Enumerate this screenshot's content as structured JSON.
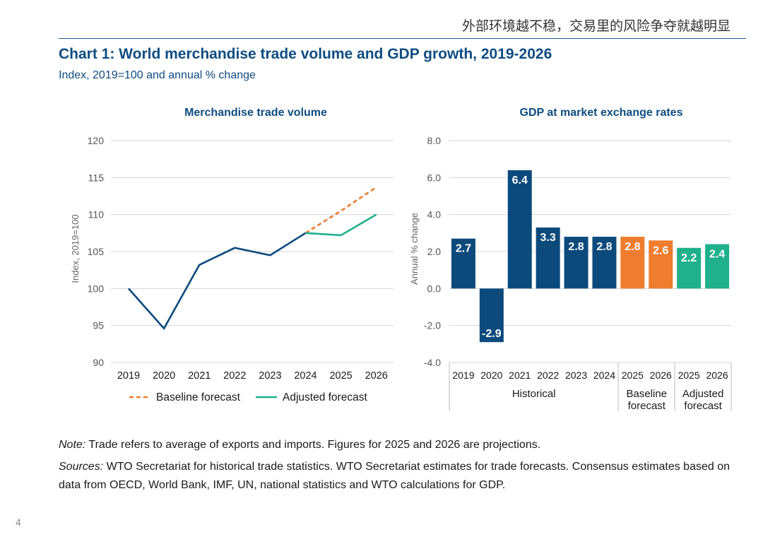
{
  "header": {
    "text": "外部环境越不稳，交易里的风险争夺就越明显"
  },
  "figure": {
    "title": "Chart 1: World merchandise trade volume and GDP growth, 2019-2026",
    "subtitle": "Index, 2019=100 and annual % change"
  },
  "colors": {
    "historical": "#0d4a7c",
    "baseline": "#ef7d2f",
    "adjusted": "#1fb08c",
    "title": "#0f4c81"
  },
  "chart_data": [
    {
      "type": "line",
      "title": "Merchandise trade volume",
      "xlabel": "",
      "ylabel": "Index, 2019=100",
      "ylim": [
        90,
        120
      ],
      "yticks": [
        90,
        95,
        100,
        105,
        110,
        115,
        120
      ],
      "x": [
        "2019",
        "2020",
        "2021",
        "2022",
        "2023",
        "2024",
        "2025",
        "2026"
      ],
      "series": [
        {
          "name": "Historical",
          "style": "solid",
          "x": [
            "2019",
            "2020",
            "2021",
            "2022",
            "2023",
            "2024"
          ],
          "values": [
            100.0,
            94.6,
            103.2,
            105.5,
            104.5,
            107.5
          ]
        },
        {
          "name": "Baseline forecast",
          "style": "dashed",
          "x": [
            "2024",
            "2025",
            "2026"
          ],
          "values": [
            107.5,
            110.5,
            113.7
          ]
        },
        {
          "name": "Adjusted forecast",
          "style": "solid",
          "x": [
            "2024",
            "2025",
            "2026"
          ],
          "values": [
            107.5,
            107.2,
            110.0
          ]
        }
      ],
      "legend": [
        {
          "label": "Baseline forecast",
          "key": "baseline"
        },
        {
          "label": "Adjusted forecast",
          "key": "adjusted"
        }
      ],
      "legend_position": "bottom",
      "grid": true
    },
    {
      "type": "bar",
      "title": "GDP at market exchange rates",
      "ylabel": "Annual % change",
      "ylim": [
        -4.0,
        8.0
      ],
      "yticks": [
        "-4.0",
        "-2.0",
        "0.0",
        "2.0",
        "4.0",
        "6.0",
        "8.0"
      ],
      "categories": [
        "2019",
        "2020",
        "2021",
        "2022",
        "2023",
        "2024",
        "2025",
        "2026",
        "2025",
        "2026"
      ],
      "values": [
        2.7,
        -2.9,
        6.4,
        3.3,
        2.8,
        2.8,
        2.8,
        2.6,
        2.2,
        2.4
      ],
      "labels": [
        "2.7",
        "-2.9",
        "6.4",
        "3.3",
        "2.8",
        "2.8",
        "2.8",
        "2.6",
        "2.2",
        "2.4"
      ],
      "groups_per_bar": [
        "historical",
        "historical",
        "historical",
        "historical",
        "historical",
        "historical",
        "baseline",
        "baseline",
        "adjusted",
        "adjusted"
      ],
      "groups": [
        {
          "key": "historical",
          "label_lines": [
            "Historical"
          ]
        },
        {
          "key": "baseline",
          "label_lines": [
            "Baseline",
            "forecast"
          ]
        },
        {
          "key": "adjusted",
          "label_lines": [
            "Adjusted",
            "forecast"
          ]
        }
      ],
      "grid": true
    }
  ],
  "footer": {
    "note_label": "Note:",
    "note_text": " Trade refers to average of exports and imports. Figures for 2025 and 2026 are projections.",
    "sources_label": "Sources:",
    "sources_text": " WTO Secretariat for historical trade statistics. WTO Secretariat estimates for trade forecasts. Consensus estimates based on data from OECD, World Bank, IMF, UN, national statistics and WTO calculations for GDP."
  },
  "page_number": "4"
}
